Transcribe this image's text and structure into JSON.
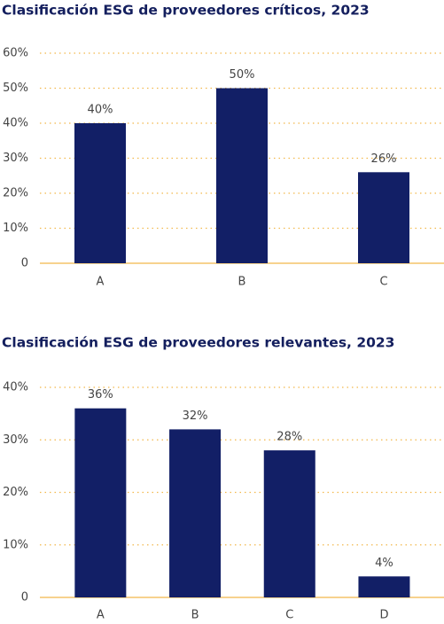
{
  "chart_data": [
    {
      "type": "bar",
      "title": "Clasificación ESG de proveedores críticos, 2023",
      "categories": [
        "A",
        "B",
        "C"
      ],
      "values": [
        40,
        50,
        26
      ],
      "value_labels": [
        "40%",
        "50%",
        "26%"
      ],
      "color": "#121f66",
      "ylim": [
        0,
        60
      ],
      "yticks": [
        0,
        {
          "value": 10,
          "label": "10%"
        },
        {
          "value": 20,
          "label": "20%"
        },
        {
          "value": 30,
          "label": "30%"
        },
        {
          "value": 40,
          "label": "40%"
        },
        {
          "value": 50,
          "label": "50%"
        },
        {
          "value": 60,
          "label": "60%"
        }
      ],
      "grid": true
    },
    {
      "type": "bar",
      "title": "Clasificación ESG de proveedores relevantes, 2023",
      "categories": [
        "A",
        "B",
        "C",
        "D"
      ],
      "values": [
        36,
        32,
        28,
        4
      ],
      "value_labels": [
        "36%",
        "32%",
        "28%",
        "4%"
      ],
      "color": "#121f66",
      "ylim": [
        0,
        40
      ],
      "yticks": [
        0,
        {
          "value": 10,
          "label": "10%"
        },
        {
          "value": 20,
          "label": "20%"
        },
        {
          "value": 30,
          "label": "30%"
        },
        {
          "value": 40,
          "label": "40%"
        }
      ],
      "grid": true
    }
  ]
}
